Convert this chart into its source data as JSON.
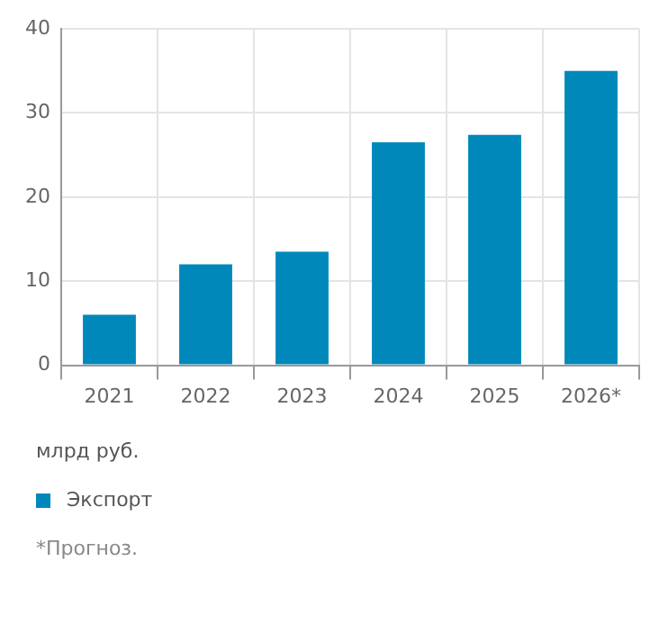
{
  "chart_data": {
    "type": "bar",
    "categories": [
      "2021",
      "2022",
      "2023",
      "2024",
      "2025",
      "2026*"
    ],
    "series": [
      {
        "name": "Экспорт",
        "color": "#0088bb",
        "values": [
          6,
          12,
          13.5,
          26.5,
          27.4,
          35
        ]
      }
    ],
    "ylim": [
      0,
      40
    ],
    "yticks": [
      0,
      10,
      20,
      30,
      40
    ],
    "grid": true,
    "legend": "bottom left",
    "ylabel": "млрд руб.",
    "annotations": [
      "*Прогноз."
    ]
  }
}
